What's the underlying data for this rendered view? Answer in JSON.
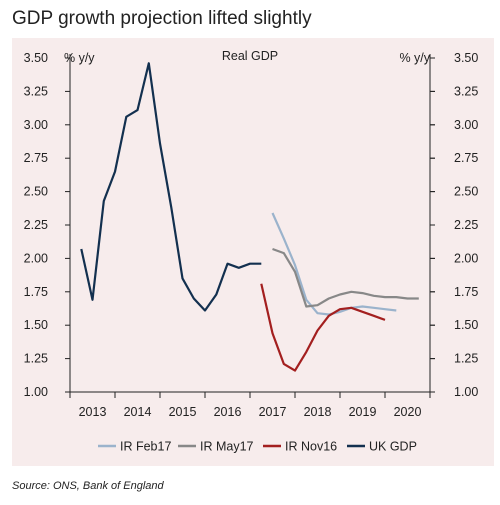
{
  "chart_data": {
    "type": "line",
    "title": "GDP growth projection lifted slightly",
    "subtitle": "Real GDP",
    "ylabel_left": "% y/y",
    "ylabel_right": "% y/y",
    "source": "Source: ONS, Bank of England",
    "ylim": [
      1.0,
      3.5
    ],
    "yticks": [
      "1.00",
      "1.25",
      "1.50",
      "1.75",
      "2.00",
      "2.25",
      "2.50",
      "2.75",
      "3.00",
      "3.25",
      "3.50"
    ],
    "xlim": [
      2012.5,
      2020.5
    ],
    "xticks": [
      "2013",
      "2014",
      "2015",
      "2016",
      "2017",
      "2018",
      "2019",
      "2020"
    ],
    "grid": false,
    "legend_position": "bottom",
    "series": [
      {
        "name": "IR Feb17",
        "color": "#9bb3cc",
        "x": [
          2017.0,
          2017.25,
          2017.5,
          2017.75,
          2018.0,
          2018.25,
          2018.5,
          2018.75,
          2019.0,
          2019.25,
          2019.5,
          2019.75
        ],
        "y": [
          2.34,
          2.15,
          1.95,
          1.69,
          1.59,
          1.58,
          1.6,
          1.63,
          1.64,
          1.63,
          1.62,
          1.61
        ]
      },
      {
        "name": "IR May17",
        "color": "#888888",
        "x": [
          2017.0,
          2017.25,
          2017.5,
          2017.75,
          2018.0,
          2018.25,
          2018.5,
          2018.75,
          2019.0,
          2019.25,
          2019.5,
          2019.75,
          2020.0,
          2020.25
        ],
        "y": [
          2.07,
          2.04,
          1.9,
          1.64,
          1.65,
          1.7,
          1.73,
          1.75,
          1.74,
          1.72,
          1.71,
          1.71,
          1.7,
          1.7
        ]
      },
      {
        "name": "IR Nov16",
        "color": "#a31f1f",
        "x": [
          2016.75,
          2017.0,
          2017.25,
          2017.5,
          2017.75,
          2018.0,
          2018.25,
          2018.5,
          2018.75,
          2019.0,
          2019.25,
          2019.5
        ],
        "y": [
          1.81,
          1.44,
          1.21,
          1.16,
          1.3,
          1.46,
          1.57,
          1.62,
          1.63,
          1.6,
          1.57,
          1.54
        ]
      },
      {
        "name": "UK GDP",
        "color": "#13304f",
        "x": [
          2012.75,
          2013.0,
          2013.25,
          2013.5,
          2013.75,
          2014.0,
          2014.25,
          2014.5,
          2014.75,
          2015.0,
          2015.25,
          2015.5,
          2015.75,
          2016.0,
          2016.25,
          2016.5,
          2016.75
        ],
        "y": [
          2.07,
          1.69,
          2.43,
          2.65,
          3.06,
          3.11,
          3.46,
          2.86,
          2.38,
          1.85,
          1.7,
          1.61,
          1.73,
          1.96,
          1.93,
          1.96,
          1.96
        ]
      }
    ]
  }
}
